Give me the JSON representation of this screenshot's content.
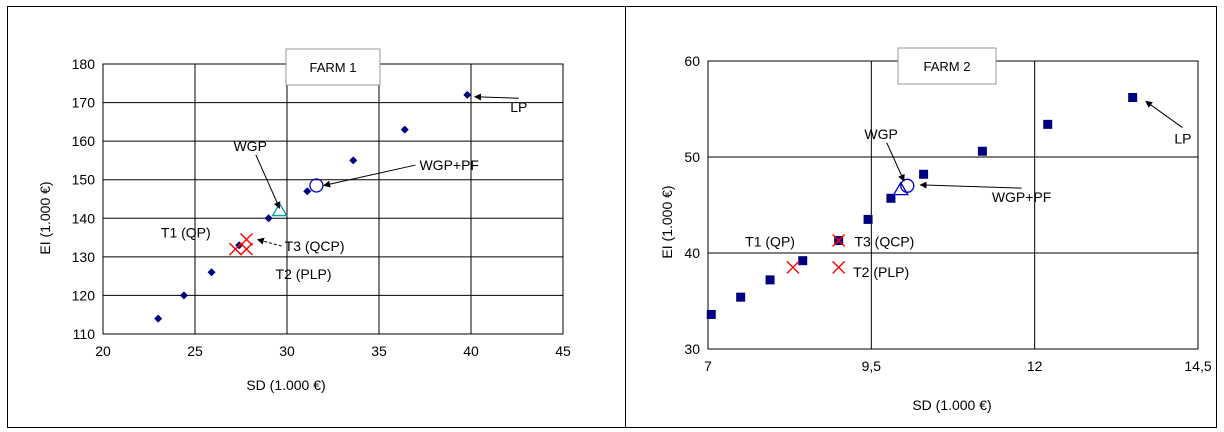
{
  "chart_data": [
    {
      "type": "scatter",
      "title": "FARM 1",
      "xlabel": "SD (1.000 €)",
      "ylabel": "EI (1.000 €)",
      "xlim": [
        20,
        45
      ],
      "ylim": [
        110,
        180
      ],
      "xticks": [
        "20",
        "25",
        "30",
        "35",
        "40",
        "45"
      ],
      "yticks": [
        "110",
        "120",
        "130",
        "140",
        "150",
        "160",
        "170",
        "180"
      ],
      "xtick_values": [
        20,
        25,
        30,
        35,
        40,
        45
      ],
      "ytick_values": [
        110,
        120,
        130,
        140,
        150,
        160,
        170,
        180
      ],
      "grid": true,
      "series": [
        {
          "marker": "diamond",
          "color": "#000080",
          "x": [
            23.0,
            24.4,
            25.9,
            27.4,
            29.0,
            31.1,
            33.6,
            36.4,
            39.8
          ],
          "y": [
            114,
            120,
            126,
            133,
            140,
            147,
            155,
            163,
            172
          ]
        },
        {
          "marker": "triangle",
          "color": "#00a0a0",
          "x": [
            29.6
          ],
          "y": [
            142
          ]
        },
        {
          "marker": "circle",
          "color": "#0000cc",
          "x": [
            31.6
          ],
          "y": [
            148.5
          ]
        },
        {
          "marker": "cross",
          "color": "#ff0000",
          "x": [
            27.2,
            27.8,
            27.8
          ],
          "y": [
            132,
            132,
            134.5
          ]
        }
      ],
      "annotations": [
        {
          "text": "LP",
          "x": 42.6,
          "y": 167.5,
          "anchor": "middle",
          "arrow_to": [
            40.2,
            171.5
          ],
          "dashed": false
        },
        {
          "text": "WGP",
          "x": 28.0,
          "y": 157.5,
          "anchor": "middle",
          "arrow_to": [
            29.6,
            142.6
          ],
          "dashed": false
        },
        {
          "text": "WGP+PF",
          "x": 37.2,
          "y": 152.5,
          "anchor": "start",
          "arrow_to": [
            32.0,
            148.5
          ],
          "dashed": false
        },
        {
          "text": "T1 (QP)",
          "x": 24.5,
          "y": 135.0,
          "anchor": "middle",
          "arrow_to": null,
          "dashed": false
        },
        {
          "text": "T3 (QCP)",
          "x": 31.5,
          "y": 131.5,
          "anchor": "middle",
          "arrow_to": [
            28.4,
            134.5
          ],
          "dashed": true
        },
        {
          "text": "T2 (PLP)",
          "x": 30.9,
          "y": 124.3,
          "anchor": "middle",
          "arrow_to": null,
          "dashed": false
        }
      ]
    },
    {
      "type": "scatter",
      "title": "FARM 2",
      "xlabel": "SD (1.000 €)",
      "ylabel": "EI (1.000 €)",
      "xlim": [
        7,
        14.5
      ],
      "ylim": [
        30,
        60
      ],
      "xticks": [
        "7",
        "9,5",
        "12",
        "14,5"
      ],
      "yticks": [
        "30",
        "40",
        "50",
        "60"
      ],
      "xtick_values": [
        7,
        9.5,
        12,
        14.5
      ],
      "ytick_values": [
        30,
        40,
        50,
        60
      ],
      "grid": true,
      "series": [
        {
          "marker": "square",
          "color": "#000080",
          "x": [
            7.05,
            7.5,
            7.95,
            8.45,
            9.0,
            9.45,
            9.8,
            10.3,
            11.2,
            12.2,
            13.5
          ],
          "y": [
            33.6,
            35.4,
            37.2,
            39.2,
            41.3,
            43.5,
            45.7,
            48.2,
            50.6,
            53.4,
            56.2
          ]
        },
        {
          "marker": "triangle",
          "color": "#0000cc",
          "x": [
            9.95
          ],
          "y": [
            46.6
          ]
        },
        {
          "marker": "circle",
          "color": "#0000cc",
          "x": [
            10.05
          ],
          "y": [
            47.0
          ]
        },
        {
          "marker": "cross",
          "color": "#ff0000",
          "x": [
            8.3,
            9.0,
            9.0
          ],
          "y": [
            38.5,
            38.5,
            41.3
          ]
        }
      ],
      "annotations": [
        {
          "text": "LP",
          "x": 14.4,
          "y": 51.4,
          "anchor": "end",
          "arrow_to": [
            13.7,
            55.8
          ],
          "dashed": false
        },
        {
          "text": "WGP",
          "x": 9.65,
          "y": 51.9,
          "anchor": "middle",
          "arrow_to": [
            10.0,
            47.5
          ],
          "dashed": false
        },
        {
          "text": "WGP+PF",
          "x": 11.8,
          "y": 45.3,
          "anchor": "middle",
          "arrow_to": [
            10.25,
            47.1
          ],
          "dashed": false
        },
        {
          "text": "T1 (QP)",
          "x": 7.95,
          "y": 40.7,
          "anchor": "middle",
          "arrow_to": null,
          "dashed": false
        },
        {
          "text": "T3 (QCP)",
          "x": 9.7,
          "y": 40.7,
          "anchor": "middle",
          "arrow_to": null,
          "dashed": false
        },
        {
          "text": "T2 (PLP)",
          "x": 9.65,
          "y": 37.5,
          "anchor": "middle",
          "arrow_to": null,
          "dashed": false
        }
      ]
    }
  ]
}
